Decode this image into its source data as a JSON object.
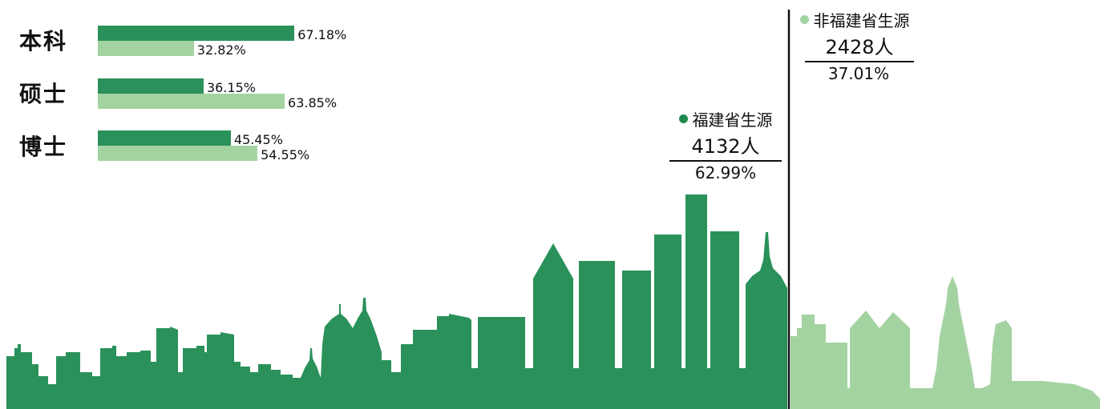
{
  "chart_data": {
    "type": "bar",
    "orientation": "horizontal",
    "colors": {
      "fujian": "#2a915a",
      "non_fujian": "#a3d3a1"
    },
    "categories": [
      "本科",
      "硕士",
      "博士"
    ],
    "series": [
      {
        "values": [
          67.18,
          36.15,
          45.45
        ],
        "labels": [
          "67.18%",
          "36.15%",
          "45.45%"
        ]
      },
      {
        "values": [
          32.82,
          63.85,
          54.55
        ],
        "labels": [
          "32.82%",
          "63.85%",
          "54.55%"
        ]
      }
    ],
    "value_unit": "%",
    "xlim": [
      0,
      100
    ]
  },
  "totals": {
    "fujian": {
      "name": "福建省生源",
      "count": "4132人",
      "share": "62.99%",
      "value": 62.99
    },
    "non_fujian": {
      "name": "非福建省生源",
      "count": "2428人",
      "share": "37.01%",
      "value": 37.01
    }
  }
}
